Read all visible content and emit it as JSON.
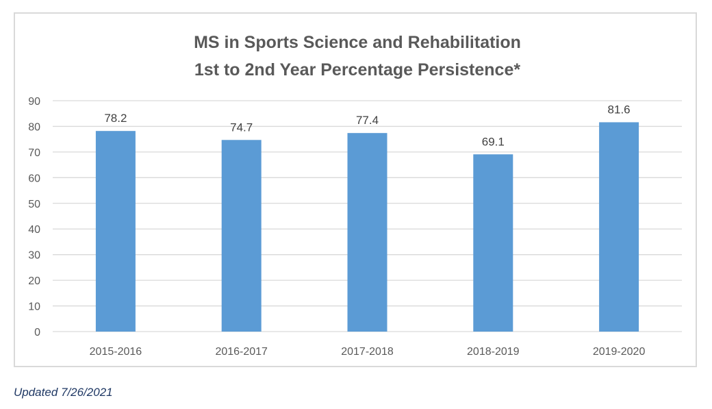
{
  "chart_data": {
    "type": "bar",
    "title": [
      "MS in Sports Science and Rehabilitation",
      "1st to 2nd Year Percentage Persistence*"
    ],
    "categories": [
      "2015-2016",
      "2016-2017",
      "2017-2018",
      "2018-2019",
      "2019-2020"
    ],
    "values": [
      78.2,
      74.7,
      77.4,
      69.1,
      81.6
    ],
    "value_labels": [
      "78.2",
      "74.7",
      "77.4",
      "69.1",
      "81.6"
    ],
    "y_ticks": [
      0,
      10,
      20,
      30,
      40,
      50,
      60,
      70,
      80,
      90
    ],
    "ylim": [
      0,
      90
    ],
    "xlabel": "",
    "ylabel": "",
    "grid": true,
    "bar_color": "#5b9bd5",
    "grid_color": "#d9d9d9"
  },
  "footnote": "Updated 7/26/2021"
}
